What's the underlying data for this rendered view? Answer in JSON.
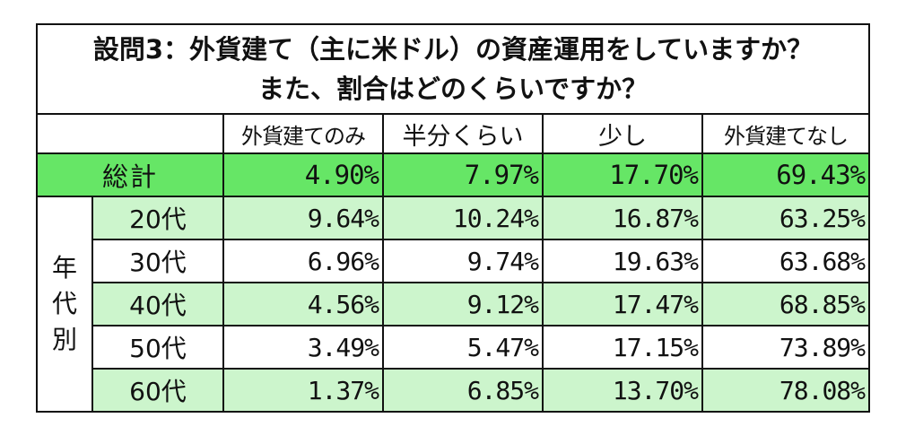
{
  "title": {
    "line1": "設問3：外貨建て（主に米ドル）の資産運用をしていますか？",
    "line2": "また、割合はどのくらいですか？"
  },
  "columns": [
    "外貨建てのみ",
    "半分くらい",
    "少し",
    "外貨建てなし"
  ],
  "total": {
    "label": "総計",
    "values": [
      "4.90%",
      "7.97%",
      "17.70%",
      "69.43%"
    ]
  },
  "group_label": [
    "年",
    "代",
    "別"
  ],
  "age_rows": [
    {
      "label": "20代",
      "values": [
        "9.64%",
        "10.24%",
        "16.87%",
        "63.25%"
      ]
    },
    {
      "label": "30代",
      "values": [
        "6.96%",
        "9.74%",
        "19.63%",
        "63.68%"
      ]
    },
    {
      "label": "40代",
      "values": [
        "4.56%",
        "9.12%",
        "17.47%",
        "68.85%"
      ]
    },
    {
      "label": "50代",
      "values": [
        "3.49%",
        "5.47%",
        "17.15%",
        "73.89%"
      ]
    },
    {
      "label": "60代",
      "values": [
        "1.37%",
        "6.85%",
        "13.70%",
        "78.08%"
      ]
    }
  ],
  "colors": {
    "total_row": "#66e666",
    "light_row": "#ccf5cc",
    "border": "#111111"
  }
}
